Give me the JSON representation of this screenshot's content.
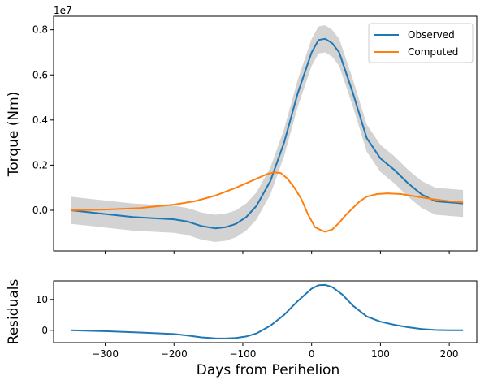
{
  "chart_data": [
    {
      "type": "line",
      "panel": "top",
      "ylabel": "Torque (Nm)",
      "offset_label": "1e7",
      "ylim": [
        -0.18,
        0.86
      ],
      "xlim": [
        -375,
        240
      ],
      "y_ticks": [
        0.0,
        0.2,
        0.4,
        0.6,
        0.8
      ],
      "y_tick_labels": [
        "0.0",
        "0.2",
        "0.4",
        "0.6",
        "0.8"
      ],
      "x_ticks": [
        -300,
        -200,
        -100,
        0,
        100,
        200
      ],
      "show_x_tick_labels": false,
      "legend": {
        "placement": "upper-right",
        "entries": [
          "Observed",
          "Computed"
        ]
      },
      "grid": false,
      "series": [
        {
          "name": "Observed",
          "color": "#1f77b4",
          "x": [
            -350,
            -320,
            -290,
            -260,
            -230,
            -200,
            -180,
            -160,
            -140,
            -125,
            -110,
            -95,
            -80,
            -60,
            -40,
            -20,
            0,
            10,
            20,
            30,
            40,
            60,
            80,
            100,
            120,
            140,
            160,
            180,
            200,
            220
          ],
          "y": [
            0.0,
            -0.01,
            -0.02,
            -0.03,
            -0.035,
            -0.04,
            -0.05,
            -0.07,
            -0.08,
            -0.075,
            -0.06,
            -0.03,
            0.02,
            0.13,
            0.3,
            0.52,
            0.7,
            0.755,
            0.76,
            0.74,
            0.7,
            0.52,
            0.32,
            0.23,
            0.18,
            0.12,
            0.07,
            0.04,
            0.035,
            0.03
          ]
        },
        {
          "name": "Computed",
          "color": "#ff7f0e",
          "x": [
            -350,
            -300,
            -250,
            -200,
            -170,
            -140,
            -110,
            -80,
            -65,
            -55,
            -45,
            -35,
            -25,
            -15,
            -5,
            5,
            15,
            20,
            30,
            40,
            50,
            60,
            70,
            80,
            95,
            110,
            130,
            150,
            175,
            200,
            220
          ],
          "y": [
            0.0,
            0.003,
            0.01,
            0.025,
            0.04,
            0.065,
            0.1,
            0.14,
            0.16,
            0.168,
            0.165,
            0.14,
            0.1,
            0.05,
            -0.02,
            -0.075,
            -0.09,
            -0.095,
            -0.085,
            -0.055,
            -0.02,
            0.01,
            0.04,
            0.06,
            0.072,
            0.075,
            0.072,
            0.062,
            0.05,
            0.04,
            0.035
          ]
        },
        {
          "name": "",
          "kind": "uncertainty-band",
          "color": "#d3d3d3",
          "x": [
            -350,
            -320,
            -290,
            -260,
            -230,
            -200,
            -180,
            -160,
            -140,
            -125,
            -110,
            -95,
            -80,
            -60,
            -40,
            -20,
            0,
            10,
            20,
            30,
            40,
            60,
            80,
            100,
            120,
            140,
            160,
            180,
            200,
            220
          ],
          "half_width": 0.06
        }
      ]
    },
    {
      "type": "line",
      "panel": "bottom",
      "xlabel": "Days from Perihelion",
      "ylabel": "Residuals",
      "ylim": [
        -4,
        16
      ],
      "xlim": [
        -375,
        240
      ],
      "y_ticks": [
        0,
        10
      ],
      "y_tick_labels": [
        "0",
        "10"
      ],
      "x_ticks": [
        -300,
        -200,
        -100,
        0,
        100,
        200
      ],
      "x_tick_labels": [
        "−300",
        "−200",
        "−100",
        "0",
        "100",
        "200"
      ],
      "grid": false,
      "series": [
        {
          "name": "",
          "color": "#1f77b4",
          "x": [
            -350,
            -300,
            -250,
            -200,
            -180,
            -160,
            -140,
            -125,
            -110,
            -95,
            -80,
            -60,
            -40,
            -20,
            0,
            10,
            20,
            30,
            45,
            60,
            80,
            100,
            120,
            140,
            160,
            180,
            200,
            220
          ],
          "y": [
            0.0,
            -0.3,
            -0.7,
            -1.2,
            -1.7,
            -2.3,
            -2.6,
            -2.65,
            -2.5,
            -2.0,
            -1.0,
            1.5,
            5.0,
            9.5,
            13.5,
            14.6,
            14.7,
            14.0,
            11.5,
            8.0,
            4.5,
            2.8,
            1.8,
            1.0,
            0.4,
            0.1,
            0.0,
            0.0
          ]
        }
      ]
    }
  ]
}
